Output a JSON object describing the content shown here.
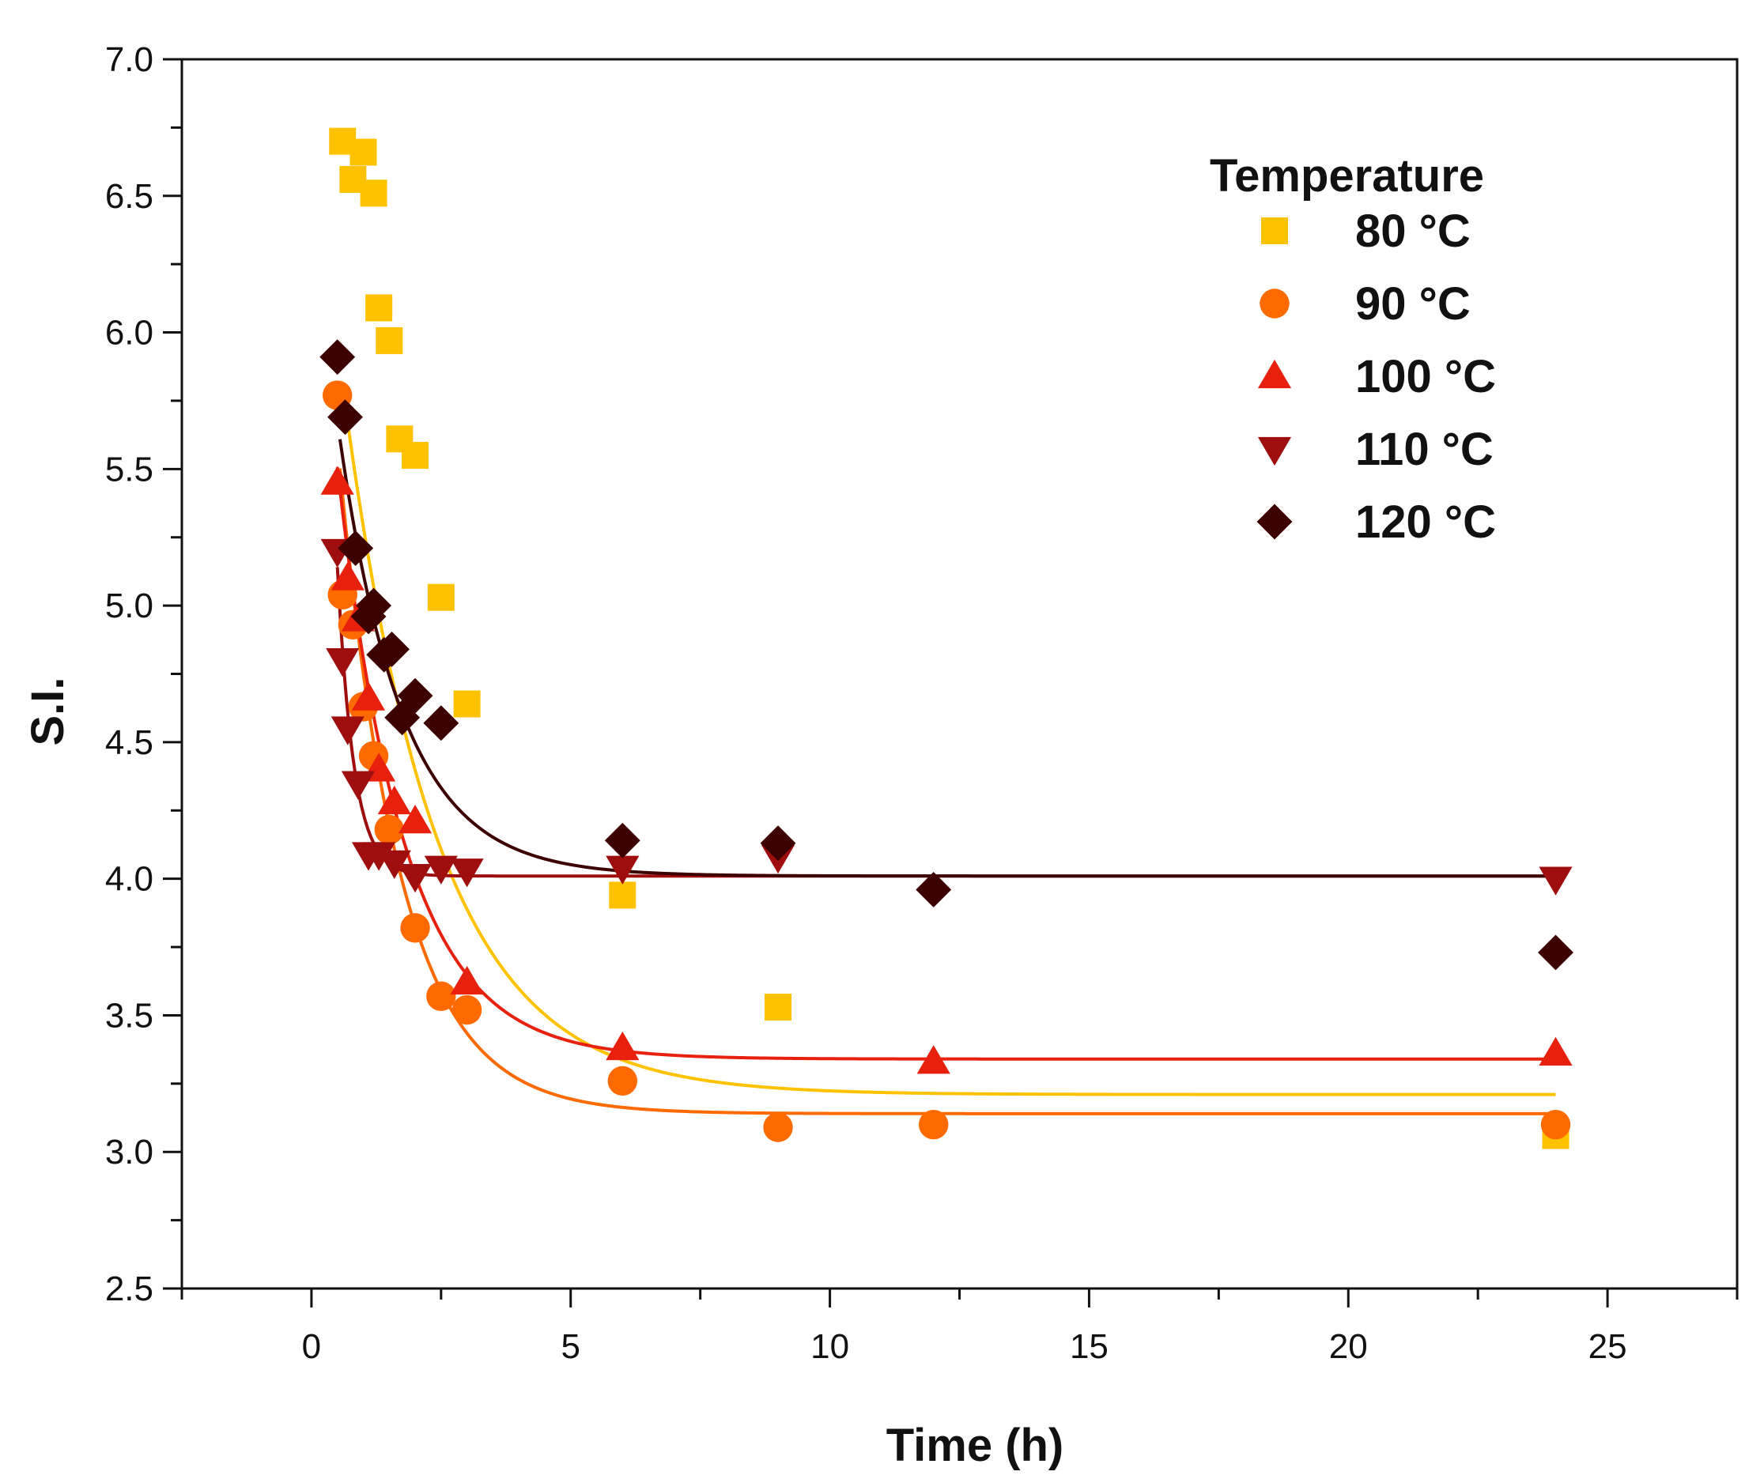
{
  "chart_data": {
    "type": "scatter",
    "title": "",
    "xlabel": "Time (h)",
    "ylabel": "S.I.",
    "xlim": [
      -2.5,
      27.5
    ],
    "ylim": [
      2.5,
      7.0
    ],
    "xticks": [
      0,
      5,
      10,
      15,
      20,
      25
    ],
    "xtick_labels": [
      "0",
      "5",
      "10",
      "15",
      "20",
      "25"
    ],
    "yticks": [
      2.5,
      3.0,
      3.5,
      4.0,
      4.5,
      5.0,
      5.5,
      6.0,
      6.5,
      7.0
    ],
    "ytick_labels": [
      "2.5",
      "3.0",
      "3.5",
      "4.0",
      "4.5",
      "5.0",
      "5.5",
      "6.0",
      "6.5",
      "7.0"
    ],
    "legend": {
      "title": "Temperature",
      "position": "top-right"
    },
    "series": [
      {
        "name": "80 °C",
        "key": "80",
        "marker": "square",
        "color": "#FFC200",
        "x": [
          0.6,
          0.8,
          1.0,
          1.2,
          1.3,
          1.5,
          1.7,
          2.0,
          2.5,
          3.0,
          6.0,
          9.0,
          24.0
        ],
        "y": [
          6.7,
          6.56,
          6.66,
          6.51,
          6.09,
          5.97,
          5.61,
          5.55,
          5.03,
          4.64,
          3.94,
          3.53,
          3.06
        ],
        "fit": {
          "a": 3.21,
          "b": 3.64,
          "k": 0.56,
          "x0": 0.6,
          "x1": 24.0
        }
      },
      {
        "name": "90 °C",
        "key": "90",
        "marker": "circle",
        "color": "#FF6A00",
        "x": [
          0.5,
          0.6,
          0.8,
          1.0,
          1.2,
          1.5,
          2.0,
          2.5,
          3.0,
          6.0,
          9.0,
          12.0,
          24.0
        ],
        "y": [
          5.77,
          5.04,
          4.93,
          4.63,
          4.45,
          4.18,
          3.82,
          3.57,
          3.52,
          3.26,
          3.09,
          3.1,
          3.1
        ],
        "fit": {
          "a": 3.14,
          "b": 3.77,
          "k": 0.85,
          "x0": 0.55,
          "x1": 24.0
        }
      },
      {
        "name": "100 °C",
        "key": "100",
        "marker": "triangle-up",
        "color": "#E8210F",
        "x": [
          0.5,
          0.7,
          0.9,
          1.1,
          1.3,
          1.6,
          2.0,
          3.0,
          6.0,
          12.0,
          24.0
        ],
        "y": [
          5.45,
          5.1,
          4.95,
          4.66,
          4.4,
          4.28,
          4.21,
          3.62,
          3.38,
          3.33,
          3.36
        ],
        "fit": {
          "a": 3.34,
          "b": 3.2,
          "k": 0.78,
          "x0": 0.5,
          "x1": 24.0
        }
      },
      {
        "name": "110 °C",
        "key": "110",
        "marker": "triangle-down",
        "color": "#9E0E0E",
        "x": [
          0.5,
          0.6,
          0.7,
          0.9,
          1.1,
          1.3,
          1.6,
          2.0,
          2.5,
          3.0,
          6.0,
          9.0,
          24.0
        ],
        "y": [
          5.2,
          4.8,
          4.55,
          4.35,
          4.09,
          4.09,
          4.06,
          4.01,
          4.04,
          4.03,
          4.04,
          4.08,
          4.0
        ],
        "fit": {
          "a": 4.01,
          "b": 5.6,
          "k": 3.2,
          "x0": 0.5,
          "x1": 24.0
        }
      },
      {
        "name": "120 °C",
        "key": "120",
        "marker": "diamond",
        "color": "#3D0000",
        "x": [
          0.5,
          0.65,
          0.85,
          1.1,
          1.2,
          1.4,
          1.55,
          1.75,
          2.0,
          2.5,
          6.0,
          9.0,
          12.0,
          24.0
        ],
        "y": [
          5.91,
          5.69,
          5.21,
          4.96,
          5.0,
          4.82,
          4.84,
          4.59,
          4.67,
          4.57,
          4.14,
          4.13,
          3.96,
          3.73
        ],
        "fit": {
          "a": 4.01,
          "b": 2.51,
          "k": 0.82,
          "x0": 0.55,
          "x1": 24.0
        }
      }
    ]
  }
}
